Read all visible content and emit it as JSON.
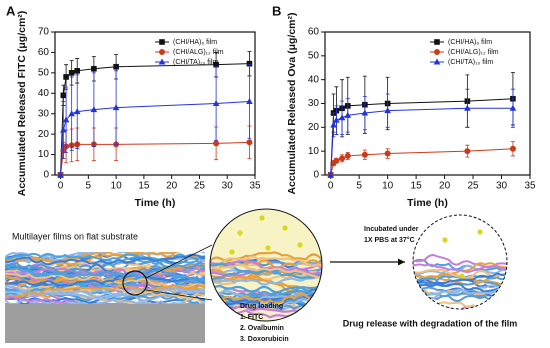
{
  "chart_data": [
    {
      "type": "line",
      "label": "A",
      "xlabel": "Time (h)",
      "ylabel": "Accumulated Released FITC (μg/cm²)",
      "x": [
        0,
        0.5,
        1,
        2,
        3,
        6,
        10,
        28,
        34
      ],
      "xlim": [
        -1,
        35
      ],
      "xticks": [
        0,
        5,
        10,
        15,
        20,
        25,
        30,
        35
      ],
      "ylim": [
        0,
        70
      ],
      "yticks": [
        0,
        10,
        20,
        30,
        40,
        50,
        60,
        70
      ],
      "legend": "upper right",
      "series": [
        {
          "name": "(CHI/HA)₆ film",
          "color": "#111111",
          "marker": "square",
          "values": [
            0,
            39,
            48,
            50,
            51,
            52,
            53,
            54,
            54.5
          ],
          "errors": [
            0,
            5,
            6,
            6,
            6,
            6,
            6,
            6,
            6
          ]
        },
        {
          "name": "(CHI/ALG)₁₂ film",
          "color": "#cc3a1a",
          "marker": "circle",
          "values": [
            0,
            12,
            14,
            14.5,
            15,
            15,
            15,
            15.5,
            16
          ],
          "errors": [
            0,
            4,
            8,
            8,
            8,
            8,
            8,
            8,
            8
          ]
        },
        {
          "name": "(CHI/TA)₁₀ film",
          "color": "#2233dd",
          "marker": "triangle",
          "values": [
            0,
            22,
            27,
            30,
            31,
            32,
            33,
            35,
            36
          ],
          "errors": [
            0,
            14,
            16,
            18,
            18,
            18,
            18,
            18,
            18
          ]
        }
      ]
    },
    {
      "type": "line",
      "label": "B",
      "xlabel": "Time (h)",
      "ylabel": "Accumulated Released Ova (μg/cm²)",
      "x": [
        0,
        0.5,
        1,
        2,
        3,
        6,
        10,
        24,
        32
      ],
      "xlim": [
        -1,
        35
      ],
      "xticks": [
        0,
        5,
        10,
        15,
        20,
        25,
        30,
        35
      ],
      "ylim": [
        0,
        60
      ],
      "yticks": [
        0,
        10,
        20,
        30,
        40,
        50,
        60
      ],
      "legend": "upper right",
      "series": [
        {
          "name": "(CHI/HA)₆ film",
          "color": "#111111",
          "marker": "square",
          "values": [
            0,
            26,
            27,
            28,
            29,
            29.5,
            30,
            31,
            32
          ],
          "errors": [
            0,
            8,
            10,
            12,
            12,
            12,
            11,
            11,
            11
          ]
        },
        {
          "name": "(CHI/ALG)₁₂ film",
          "color": "#cc3a1a",
          "marker": "circle",
          "values": [
            0,
            5,
            6,
            7,
            8,
            8.5,
            9,
            10,
            11
          ],
          "errors": [
            0,
            1,
            1,
            1.5,
            1.5,
            2,
            2,
            2.5,
            3
          ]
        },
        {
          "name": "(CHI/TA)₁₀ film",
          "color": "#2233dd",
          "marker": "triangle",
          "values": [
            0,
            21,
            23,
            24,
            25,
            26,
            27,
            28,
            28
          ],
          "errors": [
            0,
            5,
            6,
            7,
            7,
            7,
            7,
            8,
            8
          ]
        }
      ]
    }
  ],
  "diagram": {
    "left_caption": "Multilayer films on flat substrate",
    "loading_title": "Drug loading",
    "loading_items": [
      "1. FITC",
      "2. Ovalbumin",
      "3. Doxorubicin"
    ],
    "incubation": [
      "Incubated under",
      "1X PBS at 37°C"
    ],
    "release_caption": "Drug release with degradation of the film"
  }
}
